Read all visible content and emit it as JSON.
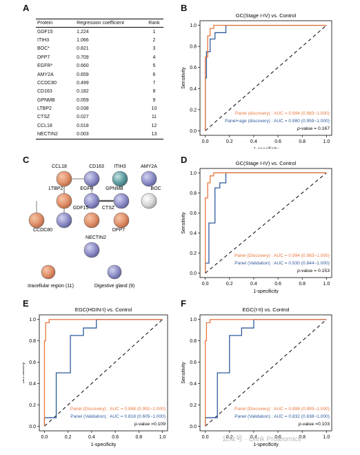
{
  "panels": {
    "A": "A",
    "B": "B",
    "C": "C",
    "D": "D",
    "E": "E",
    "F": "F"
  },
  "table": {
    "headers": [
      "Protein",
      "Regression coefficient",
      "Rank"
    ],
    "rows": [
      [
        "GDF15",
        "1.224",
        "1"
      ],
      [
        "ITIH3",
        "1.066",
        "2"
      ],
      [
        "BOC*",
        "0.821",
        "3"
      ],
      [
        "DPP7",
        "0.709",
        "4"
      ],
      [
        "EGFR*",
        "0.660",
        "5"
      ],
      [
        "AMY2A",
        "0.659",
        "6"
      ],
      [
        "CCDC80",
        "0.499",
        "7"
      ],
      [
        "CD163",
        "0.182",
        "8"
      ],
      [
        "GPNMB",
        "0.059",
        "9"
      ],
      [
        "LTBP2",
        "0.038",
        "10"
      ],
      [
        "CTSZ",
        "0.027",
        "11"
      ],
      [
        "CCL18",
        "0.018",
        "12"
      ],
      [
        "NECTIN2",
        "0.003",
        "13"
      ]
    ]
  },
  "network": {
    "nodes": [
      {
        "label": "CCL18",
        "color": "#e0926b"
      },
      {
        "label": "CD163",
        "color": "#8f8fc9"
      },
      {
        "label": "ITIH3",
        "color": "#5e9ea3"
      },
      {
        "label": "AMY2A",
        "color": "#8f8fc9"
      },
      {
        "label": "LTBP2",
        "color": "#e0926b"
      },
      {
        "label": "EGFR",
        "color": "#8f8fc9"
      },
      {
        "label": "GPNMB",
        "color": "#8f8fc9"
      },
      {
        "label": "BOC",
        "color": "#d9d9d9"
      },
      {
        "label": "CCDC80",
        "color": "#e0926b"
      },
      {
        "label": "GDF15",
        "color": "#8f8fc9"
      },
      {
        "label": "CTSZ",
        "color": "#e0926b"
      },
      {
        "label": "DPP7",
        "color": "#e0926b"
      },
      {
        "label": "NECTIN2",
        "color": "#8f8fc9"
      }
    ],
    "legend": [
      {
        "label": "Extracellular region (11)",
        "color": "#e0926b"
      },
      {
        "label": "Digestive gland (9)",
        "color": "#8f8fc9"
      }
    ]
  },
  "watermark": "公众号 · Olink Proteomics",
  "colors": {
    "discovery": "#e8763c",
    "other": "#2e5a9c"
  },
  "chart_data": [
    {
      "panel": "B",
      "type": "line",
      "title": "GC(Stage I-IV) vs. Control",
      "xlabel": "1-specificity",
      "ylabel": "Sensitivity",
      "xlim": [
        0,
        1
      ],
      "ylim": [
        0,
        1
      ],
      "ticks": [
        "0.0",
        "0.2",
        "0.4",
        "0.6",
        "0.8",
        "1.0"
      ],
      "series": [
        {
          "name": "Panel (discovery) : AUC = 0.994 (0.983~1.000)",
          "color": "#e8763c",
          "x": [
            0,
            0,
            0.02,
            0.02,
            0.04,
            0.04,
            0.07,
            0.07,
            1
          ],
          "y": [
            0,
            0.7,
            0.7,
            0.9,
            0.9,
            0.97,
            0.97,
            1,
            1
          ]
        },
        {
          "name": "Panel+age (discovery) : AUC = 0.980 (0.959~1.000)",
          "color": "#2e5a9c",
          "x": [
            0,
            0,
            0.01,
            0.01,
            0.04,
            0.04,
            0.08,
            0.08,
            0.17,
            0.17,
            1
          ],
          "y": [
            0,
            0.5,
            0.5,
            0.75,
            0.75,
            0.87,
            0.87,
            0.93,
            0.93,
            1,
            1
          ]
        }
      ],
      "pvalue": "= 0.167"
    },
    {
      "panel": "D",
      "type": "line",
      "title": "GC(Stage I-IV) vs. Control",
      "xlabel": "1-specificity",
      "ylabel": "Sensitivity",
      "xlim": [
        0,
        1
      ],
      "ylim": [
        0,
        1
      ],
      "ticks": [
        "0.0",
        "0.2",
        "0.4",
        "0.6",
        "0.8",
        "1.0"
      ],
      "series": [
        {
          "name": "Panel (Discovery) : AUC = 0.994 (0.983~1.000)",
          "color": "#e8763c",
          "x": [
            0,
            0,
            0.02,
            0.02,
            0.04,
            0.04,
            0.07,
            0.07,
            1
          ],
          "y": [
            0,
            0.75,
            0.75,
            0.9,
            0.9,
            0.97,
            0.97,
            1,
            1
          ]
        },
        {
          "name": "Panel (Validation) : AUC = 0.930 (0.844~1.000)",
          "color": "#2e5a9c",
          "x": [
            0,
            0,
            0.03,
            0.03,
            0.08,
            0.08,
            0.12,
            0.12,
            0.17,
            0.17,
            1
          ],
          "y": [
            0,
            0.1,
            0.1,
            0.5,
            0.5,
            0.85,
            0.85,
            0.9,
            0.9,
            1,
            1
          ]
        }
      ],
      "pvalue": "= 0.153"
    },
    {
      "panel": "E",
      "type": "line",
      "title": "EGC(HGIN-I) vs. Control",
      "xlabel": "1-specificity",
      "ylabel": "Sensitivity",
      "xlim": [
        0,
        1
      ],
      "ylim": [
        0,
        1
      ],
      "ticks": [
        "0.0",
        "0.2",
        "0.4",
        "0.6",
        "0.8",
        "1.0"
      ],
      "series": [
        {
          "name": "Panel (Discovery) : AUC = 0.998 (0.992~1.000)",
          "color": "#e8763c",
          "x": [
            0,
            0,
            0.01,
            0.01,
            0.04,
            0.04,
            1
          ],
          "y": [
            0,
            0.8,
            0.8,
            0.97,
            0.97,
            1,
            1
          ]
        },
        {
          "name": "Panel (Validation) : AUC = 0.818 (0.605~1.000)",
          "color": "#2e5a9c",
          "x": [
            0,
            0,
            0.1,
            0.1,
            0.22,
            0.22,
            0.33,
            0.33,
            0.44,
            0.44,
            1
          ],
          "y": [
            0,
            0.08,
            0.08,
            0.5,
            0.5,
            0.85,
            0.85,
            0.92,
            0.92,
            1,
            1
          ]
        }
      ],
      "pvalue": "=0.109"
    },
    {
      "panel": "F",
      "type": "line",
      "title": "EGC(I-II) vs. Control",
      "xlabel": "1-specificity",
      "ylabel": "Sensitivity",
      "xlim": [
        0,
        1
      ],
      "ylim": [
        0,
        1
      ],
      "ticks": [
        "0.0",
        "0.2",
        "0.4",
        "0.6",
        "0.8",
        "1.0"
      ],
      "series": [
        {
          "name": "Panel (Discovery) : AUC = 0.998 (0.993~1.000)",
          "color": "#e8763c",
          "x": [
            0,
            0,
            0.01,
            0.01,
            0.04,
            0.04,
            1
          ],
          "y": [
            0,
            0.8,
            0.8,
            0.97,
            0.97,
            1,
            1
          ]
        },
        {
          "name": "Panel (Validation) : AUC = 0.832 (0.638~1.000)",
          "color": "#2e5a9c",
          "x": [
            0,
            0,
            0.1,
            0.1,
            0.2,
            0.2,
            0.3,
            0.3,
            0.4,
            0.4,
            1
          ],
          "y": [
            0,
            0.08,
            0.08,
            0.5,
            0.5,
            0.85,
            0.85,
            0.92,
            0.92,
            1,
            1
          ]
        }
      ],
      "pvalue": "=0.103"
    }
  ]
}
